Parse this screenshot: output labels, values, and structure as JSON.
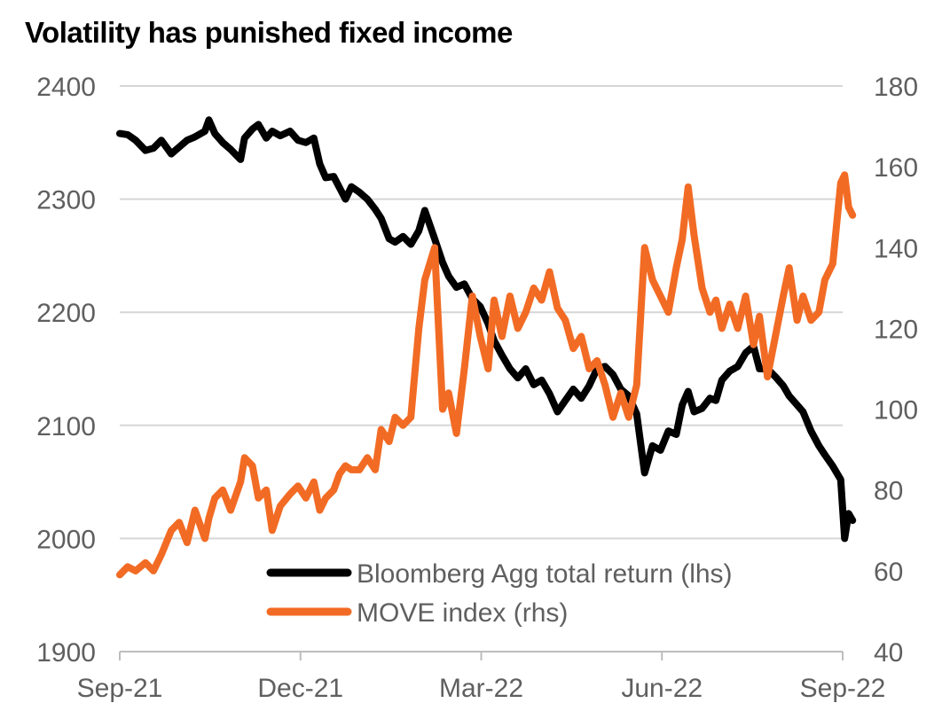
{
  "chart_data": {
    "type": "line",
    "title": "Volatility has punished fixed income",
    "x_ticks": [
      "Sep-21",
      "Dec-21",
      "Mar-22",
      "Jun-22",
      "Sep-22"
    ],
    "y_left_ticks": [
      "1900",
      "2000",
      "2100",
      "2200",
      "2300",
      "2400"
    ],
    "y_right_ticks": [
      "40",
      "60",
      "80",
      "100",
      "120",
      "140",
      "160",
      "180"
    ],
    "ylim_left": [
      1900,
      2400
    ],
    "ylim_right": [
      40,
      180
    ],
    "x_range": [
      "2021-09-01",
      "2022-09-01"
    ],
    "grid": true,
    "legend_position": "bottom-center",
    "series": [
      {
        "name": "Bloomberg Agg total return (lhs)",
        "axis": "left",
        "color": "#000000",
        "points": [
          [
            "2021-09-01",
            2358
          ],
          [
            "2021-09-05",
            2357
          ],
          [
            "2021-09-09",
            2352
          ],
          [
            "2021-09-14",
            2343
          ],
          [
            "2021-09-18",
            2345
          ],
          [
            "2021-09-22",
            2352
          ],
          [
            "2021-09-27",
            2340
          ],
          [
            "2021-10-01",
            2346
          ],
          [
            "2021-10-05",
            2352
          ],
          [
            "2021-10-09",
            2355
          ],
          [
            "2021-10-14",
            2360
          ],
          [
            "2021-10-16",
            2370
          ],
          [
            "2021-10-19",
            2358
          ],
          [
            "2021-10-23",
            2350
          ],
          [
            "2021-10-27",
            2344
          ],
          [
            "2021-11-01",
            2335
          ],
          [
            "2021-11-03",
            2354
          ],
          [
            "2021-11-07",
            2362
          ],
          [
            "2021-11-10",
            2366
          ],
          [
            "2021-11-14",
            2354
          ],
          [
            "2021-11-17",
            2360
          ],
          [
            "2021-11-21",
            2356
          ],
          [
            "2021-11-26",
            2360
          ],
          [
            "2021-11-30",
            2352
          ],
          [
            "2021-12-04",
            2350
          ],
          [
            "2021-12-08",
            2354
          ],
          [
            "2021-12-11",
            2331
          ],
          [
            "2021-12-14",
            2319
          ],
          [
            "2021-12-18",
            2320
          ],
          [
            "2021-12-21",
            2310
          ],
          [
            "2021-12-24",
            2300
          ],
          [
            "2021-12-27",
            2311
          ],
          [
            "2021-12-31",
            2306
          ],
          [
            "2022-01-04",
            2300
          ],
          [
            "2022-01-08",
            2291
          ],
          [
            "2022-01-11",
            2283
          ],
          [
            "2022-01-15",
            2265
          ],
          [
            "2022-01-18",
            2262
          ],
          [
            "2022-01-22",
            2267
          ],
          [
            "2022-01-26",
            2260
          ],
          [
            "2022-01-30",
            2272
          ],
          [
            "2022-02-02",
            2290
          ],
          [
            "2022-02-07",
            2265
          ],
          [
            "2022-02-11",
            2244
          ],
          [
            "2022-02-14",
            2232
          ],
          [
            "2022-02-18",
            2222
          ],
          [
            "2022-02-22",
            2225
          ],
          [
            "2022-02-26",
            2212
          ],
          [
            "2022-03-02",
            2205
          ],
          [
            "2022-03-06",
            2190
          ],
          [
            "2022-03-09",
            2175
          ],
          [
            "2022-03-13",
            2162
          ],
          [
            "2022-03-17",
            2150
          ],
          [
            "2022-03-21",
            2142
          ],
          [
            "2022-03-25",
            2150
          ],
          [
            "2022-03-29",
            2136
          ],
          [
            "2022-04-02",
            2140
          ],
          [
            "2022-04-06",
            2128
          ],
          [
            "2022-04-10",
            2112
          ],
          [
            "2022-04-14",
            2122
          ],
          [
            "2022-04-18",
            2132
          ],
          [
            "2022-04-22",
            2124
          ],
          [
            "2022-04-26",
            2135
          ],
          [
            "2022-04-30",
            2150
          ],
          [
            "2022-05-04",
            2152
          ],
          [
            "2022-05-08",
            2145
          ],
          [
            "2022-05-12",
            2132
          ],
          [
            "2022-05-16",
            2126
          ],
          [
            "2022-05-20",
            2110
          ],
          [
            "2022-05-24",
            2058
          ],
          [
            "2022-05-28",
            2082
          ],
          [
            "2022-06-01",
            2078
          ],
          [
            "2022-06-05",
            2095
          ],
          [
            "2022-06-09",
            2092
          ],
          [
            "2022-06-12",
            2118
          ],
          [
            "2022-06-15",
            2130
          ],
          [
            "2022-06-18",
            2112
          ],
          [
            "2022-06-22",
            2115
          ],
          [
            "2022-06-26",
            2124
          ],
          [
            "2022-06-29",
            2122
          ],
          [
            "2022-07-02",
            2140
          ],
          [
            "2022-07-06",
            2148
          ],
          [
            "2022-07-10",
            2152
          ],
          [
            "2022-07-14",
            2164
          ],
          [
            "2022-07-18",
            2170
          ],
          [
            "2022-07-21",
            2150
          ],
          [
            "2022-07-25",
            2150
          ],
          [
            "2022-07-29",
            2143
          ],
          [
            "2022-08-02",
            2135
          ],
          [
            "2022-08-05",
            2126
          ],
          [
            "2022-08-09",
            2118
          ],
          [
            "2022-08-12",
            2112
          ],
          [
            "2022-08-16",
            2095
          ],
          [
            "2022-08-20",
            2082
          ],
          [
            "2022-08-23",
            2074
          ],
          [
            "2022-08-27",
            2064
          ],
          [
            "2022-08-31",
            2052
          ],
          [
            "2022-09-02",
            2000
          ],
          [
            "2022-09-04",
            2022
          ],
          [
            "2022-09-06",
            2016
          ]
        ]
      },
      {
        "name": "MOVE index (rhs)",
        "axis": "right",
        "color": "#f26b24",
        "points": [
          [
            "2021-09-01",
            59
          ],
          [
            "2021-09-05",
            61
          ],
          [
            "2021-09-09",
            60
          ],
          [
            "2021-09-14",
            62
          ],
          [
            "2021-09-18",
            60
          ],
          [
            "2021-09-22",
            64
          ],
          [
            "2021-09-27",
            70
          ],
          [
            "2021-10-01",
            72
          ],
          [
            "2021-10-05",
            67
          ],
          [
            "2021-10-09",
            75
          ],
          [
            "2021-10-14",
            68
          ],
          [
            "2021-10-16",
            73
          ],
          [
            "2021-10-19",
            78
          ],
          [
            "2021-10-23",
            80
          ],
          [
            "2021-10-27",
            75
          ],
          [
            "2021-11-01",
            82
          ],
          [
            "2021-11-03",
            88
          ],
          [
            "2021-11-07",
            86
          ],
          [
            "2021-11-10",
            78
          ],
          [
            "2021-11-14",
            80
          ],
          [
            "2021-11-17",
            70
          ],
          [
            "2021-11-21",
            76
          ],
          [
            "2021-11-26",
            79
          ],
          [
            "2021-11-30",
            81
          ],
          [
            "2021-12-04",
            78
          ],
          [
            "2021-12-08",
            82
          ],
          [
            "2021-12-11",
            75
          ],
          [
            "2021-12-14",
            78
          ],
          [
            "2021-12-18",
            80
          ],
          [
            "2021-12-21",
            84
          ],
          [
            "2021-12-24",
            86
          ],
          [
            "2021-12-27",
            85
          ],
          [
            "2021-12-31",
            85
          ],
          [
            "2022-01-04",
            88
          ],
          [
            "2022-01-08",
            85
          ],
          [
            "2022-01-11",
            95
          ],
          [
            "2022-01-15",
            92
          ],
          [
            "2022-01-18",
            98
          ],
          [
            "2022-01-22",
            96
          ],
          [
            "2022-01-26",
            98
          ],
          [
            "2022-01-30",
            120
          ],
          [
            "2022-02-02",
            132
          ],
          [
            "2022-02-07",
            140
          ],
          [
            "2022-02-11",
            100
          ],
          [
            "2022-02-14",
            104
          ],
          [
            "2022-02-18",
            94
          ],
          [
            "2022-02-22",
            110
          ],
          [
            "2022-02-26",
            128
          ],
          [
            "2022-03-02",
            118
          ],
          [
            "2022-03-06",
            110
          ],
          [
            "2022-03-09",
            127
          ],
          [
            "2022-03-13",
            118
          ],
          [
            "2022-03-17",
            128
          ],
          [
            "2022-03-21",
            120
          ],
          [
            "2022-03-25",
            124
          ],
          [
            "2022-03-29",
            130
          ],
          [
            "2022-04-02",
            127
          ],
          [
            "2022-04-06",
            134
          ],
          [
            "2022-04-10",
            125
          ],
          [
            "2022-04-14",
            122
          ],
          [
            "2022-04-18",
            115
          ],
          [
            "2022-04-22",
            118
          ],
          [
            "2022-04-26",
            110
          ],
          [
            "2022-04-30",
            112
          ],
          [
            "2022-05-04",
            106
          ],
          [
            "2022-05-08",
            98
          ],
          [
            "2022-05-12",
            104
          ],
          [
            "2022-05-16",
            98
          ],
          [
            "2022-05-20",
            106
          ],
          [
            "2022-05-24",
            140
          ],
          [
            "2022-05-28",
            132
          ],
          [
            "2022-06-01",
            128
          ],
          [
            "2022-06-05",
            124
          ],
          [
            "2022-06-09",
            135
          ],
          [
            "2022-06-12",
            142
          ],
          [
            "2022-06-15",
            155
          ],
          [
            "2022-06-18",
            143
          ],
          [
            "2022-06-22",
            130
          ],
          [
            "2022-06-26",
            124
          ],
          [
            "2022-06-29",
            127
          ],
          [
            "2022-07-02",
            120
          ],
          [
            "2022-07-06",
            126
          ],
          [
            "2022-07-10",
            120
          ],
          [
            "2022-07-14",
            128
          ],
          [
            "2022-07-18",
            116
          ],
          [
            "2022-07-21",
            123
          ],
          [
            "2022-07-25",
            108
          ],
          [
            "2022-07-29",
            118
          ],
          [
            "2022-08-02",
            128
          ],
          [
            "2022-08-05",
            135
          ],
          [
            "2022-08-09",
            122
          ],
          [
            "2022-08-12",
            128
          ],
          [
            "2022-08-16",
            122
          ],
          [
            "2022-08-20",
            124
          ],
          [
            "2022-08-23",
            132
          ],
          [
            "2022-08-27",
            136
          ],
          [
            "2022-08-31",
            156
          ],
          [
            "2022-09-02",
            158
          ],
          [
            "2022-09-04",
            150
          ],
          [
            "2022-09-06",
            148
          ]
        ]
      }
    ]
  }
}
